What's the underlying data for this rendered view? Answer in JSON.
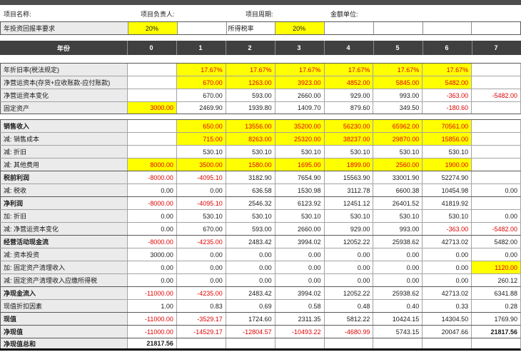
{
  "top_labels": [
    {
      "text": "项目名称:"
    },
    {
      "text": "项目负责人:"
    },
    {
      "text": "项目周期:"
    },
    {
      "text": "金额单位:"
    }
  ],
  "params_row": {
    "label": "年投资回报率要求",
    "cells": [
      {
        "v": "20%",
        "yellow": true,
        "align": "center",
        "name": "roi-requirement-input"
      },
      {
        "v": ""
      },
      {
        "v": "所得税率",
        "align": "left",
        "name": "income-tax-rate-label"
      },
      {
        "v": "20%",
        "yellow": true,
        "align": "center",
        "name": "income-tax-rate-input"
      },
      {
        "v": ""
      },
      {
        "v": ""
      },
      {
        "v": ""
      },
      {
        "v": ""
      }
    ]
  },
  "year_header": {
    "label": "年份",
    "years": [
      "0",
      "1",
      "2",
      "3",
      "4",
      "5",
      "6",
      "7"
    ]
  },
  "colors": {
    "input_bg": "#ffff00",
    "negative_text": "#e00000",
    "header_bg": "#404040",
    "label_bg": "#ebebeb"
  },
  "rows": [
    {
      "label": "年折旧率(税法规定)",
      "values": [
        "",
        "17.67%",
        "17.67%",
        "17.67%",
        "17.67%",
        "17.67%",
        "17.67%",
        ""
      ],
      "yellow": [
        1,
        2,
        3,
        4,
        5,
        6
      ]
    },
    {
      "label": "净营运资本(存货+应收账款-应付账款)",
      "values": [
        "",
        "670.00",
        "1263.00",
        "3923.00",
        "4852.00",
        "5845.00",
        "5482.00",
        ""
      ],
      "yellow": [
        1,
        2,
        3,
        4,
        5,
        6
      ]
    },
    {
      "label": "净营运资本变化",
      "values": [
        "",
        "670.00",
        "593.00",
        "2660.00",
        "929.00",
        "993.00",
        "-363.00",
        "-5482.00"
      ]
    },
    {
      "label": "固定资产",
      "values": [
        "3000.00",
        "2469.90",
        "1939.80",
        "1409.70",
        "879.60",
        "349.50",
        "-180.60",
        ""
      ],
      "yellow": [
        0
      ]
    },
    {
      "label": "销售收入",
      "bold": true,
      "gap_before": true,
      "values": [
        "",
        "650.00",
        "13556.00",
        "35200.00",
        "56230.00",
        "65962.00",
        "70561.00",
        ""
      ],
      "yellow": [
        1,
        2,
        3,
        4,
        5,
        6
      ]
    },
    {
      "label": "减: 销售成本",
      "values": [
        "",
        "715.00",
        "8263.00",
        "25320.00",
        "38237.00",
        "29870.00",
        "15856.00",
        ""
      ],
      "yellow": [
        1,
        2,
        3,
        4,
        5,
        6
      ]
    },
    {
      "label": "减: 折旧",
      "values": [
        "",
        "530.10",
        "530.10",
        "530.10",
        "530.10",
        "530.10",
        "530.10",
        ""
      ]
    },
    {
      "label": "减: 其他费用",
      "values": [
        "8000.00",
        "3500.00",
        "1580.00",
        "1695.00",
        "1899.00",
        "2560.00",
        "1900.00",
        ""
      ],
      "yellow": [
        0,
        1,
        2,
        3,
        4,
        5,
        6
      ]
    },
    {
      "label": "税前利润",
      "bold": true,
      "values": [
        "-8000.00",
        "-4095.10",
        "3182.90",
        "7654.90",
        "15563.90",
        "33001.90",
        "52274.90",
        ""
      ]
    },
    {
      "label": "减: 税收",
      "values": [
        "0.00",
        "0.00",
        "636.58",
        "1530.98",
        "3112.78",
        "6600.38",
        "10454.98",
        "0.00"
      ]
    },
    {
      "label": "净利润",
      "bold": true,
      "values": [
        "-8000.00",
        "-4095.10",
        "2546.32",
        "6123.92",
        "12451.12",
        "26401.52",
        "41819.92",
        ""
      ]
    },
    {
      "label": "加: 折旧",
      "values": [
        "0.00",
        "530.10",
        "530.10",
        "530.10",
        "530.10",
        "530.10",
        "530.10",
        "0.00"
      ]
    },
    {
      "label": "减: 净营运资本变化",
      "values": [
        "0.00",
        "670.00",
        "593.00",
        "2660.00",
        "929.00",
        "993.00",
        "-363.00",
        "-5482.00"
      ]
    },
    {
      "label": "经营活动现金流",
      "bold": true,
      "values": [
        "-8000.00",
        "-4235.00",
        "2483.42",
        "3994.02",
        "12052.22",
        "25938.62",
        "42713.02",
        "5482.00"
      ]
    },
    {
      "label": "减: 资本投资",
      "values": [
        "3000.00",
        "0.00",
        "0.00",
        "0.00",
        "0.00",
        "0.00",
        "0.00",
        "0.00"
      ]
    },
    {
      "label": "加: 固定资产清理收入",
      "values": [
        "0.00",
        "0.00",
        "0.00",
        "0.00",
        "0.00",
        "0.00",
        "0.00",
        "1120.00"
      ],
      "yellow": [
        7
      ]
    },
    {
      "label": "减: 固定资产清理收入应缴所得税",
      "values": [
        "0.00",
        "0.00",
        "0.00",
        "0.00",
        "0.00",
        "0.00",
        "0.00",
        "260.12"
      ]
    },
    {
      "label": "净现金流入",
      "bold": true,
      "values": [
        "-11000.00",
        "-4235.00",
        "2483.42",
        "3994.02",
        "12052.22",
        "25938.62",
        "42713.02",
        "6341.88"
      ]
    },
    {
      "label": "现值折扣因素",
      "values": [
        "1.00",
        "0.83",
        "0.69",
        "0.58",
        "0.48",
        "0.40",
        "0.33",
        "0.28"
      ]
    },
    {
      "label": "现值",
      "bold": true,
      "values": [
        "-11000.00",
        "-3529.17",
        "1724.60",
        "2311.35",
        "5812.22",
        "10424.15",
        "14304.50",
        "1769.90"
      ]
    },
    {
      "label": "净现值",
      "bold": true,
      "values": [
        "-11000.00",
        "-14529.17",
        "-12804.57",
        "-10493.22",
        "-4680.99",
        "5743.15",
        "20047.66",
        "21817.56"
      ],
      "bold_cols": [
        7
      ]
    },
    {
      "label": "净现值总和",
      "bold": true,
      "values": [
        "21817.56",
        "",
        "",
        "",
        "",
        "",
        "",
        ""
      ],
      "bold_cols": [
        0
      ]
    }
  ]
}
